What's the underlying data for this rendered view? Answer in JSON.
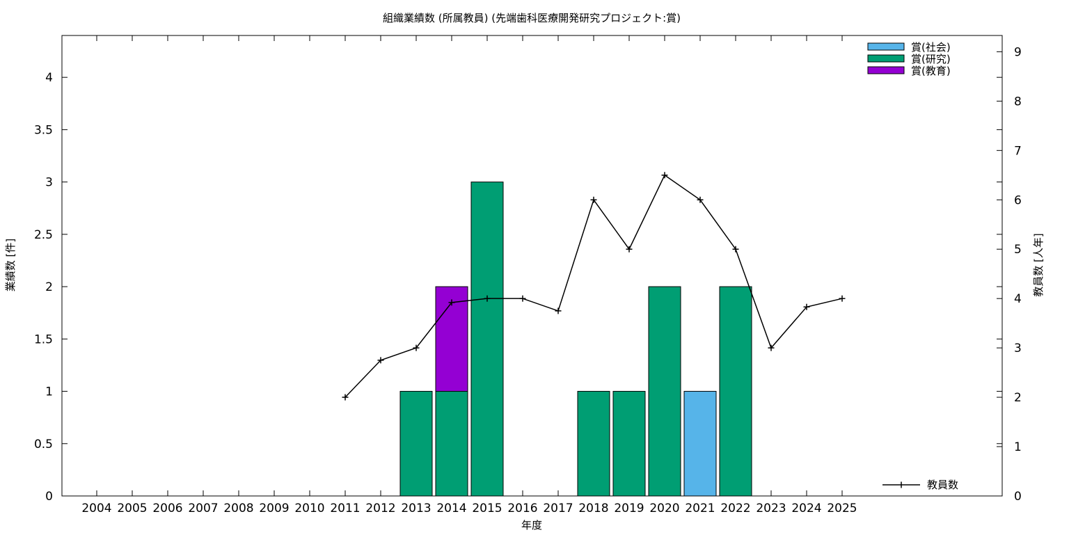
{
  "chart_data": {
    "type": "bar",
    "title": "組織業績数 (所属教員) (先端歯科医療開発研究プロジェクト:賞)",
    "xlabel": "年度",
    "ylabel": "業績数 [件]",
    "y2label": "教員数 [人年]",
    "categories": [
      "2004",
      "2005",
      "2006",
      "2007",
      "2008",
      "2009",
      "2010",
      "2011",
      "2012",
      "2013",
      "2014",
      "2015",
      "2016",
      "2017",
      "2018",
      "2019",
      "2020",
      "2021",
      "2022",
      "2023",
      "2024",
      "2025"
    ],
    "ylim": [
      0,
      4.4
    ],
    "y2lim": [
      0,
      9.33
    ],
    "yticks": [
      "0",
      "0.5",
      "1",
      "1.5",
      "2",
      "2.5",
      "3",
      "3.5",
      "4"
    ],
    "y2ticks": [
      "0",
      "1",
      "2",
      "3",
      "4",
      "5",
      "6",
      "7",
      "8",
      "9"
    ],
    "stacked": true,
    "grid": false,
    "legend_position": "top-right",
    "series": [
      {
        "name": "賞(社会)",
        "color": "#56b4e9",
        "values": [
          0,
          0,
          0,
          0,
          0,
          0,
          0,
          0,
          0,
          0,
          0,
          0,
          0,
          0,
          0,
          0,
          0,
          1,
          0,
          0,
          0,
          0
        ]
      },
      {
        "name": "賞(研究)",
        "color": "#009e73",
        "values": [
          0,
          0,
          0,
          0,
          0,
          0,
          0,
          0,
          0,
          1,
          1,
          3,
          0,
          0,
          1,
          1,
          2,
          0,
          2,
          0,
          0,
          0
        ]
      },
      {
        "name": "賞(教育)",
        "color": "#9400d3",
        "values": [
          0,
          0,
          0,
          0,
          0,
          0,
          0,
          0,
          0,
          0,
          1,
          0,
          0,
          0,
          0,
          0,
          0,
          0,
          0,
          0,
          0,
          0
        ]
      }
    ],
    "line_series": {
      "name": "教員数",
      "color": "#000000",
      "axis": "y2",
      "values": [
        null,
        null,
        null,
        null,
        null,
        null,
        null,
        2,
        2.75,
        3,
        3.92,
        4,
        4,
        3.75,
        6,
        5,
        6.5,
        6,
        5,
        3,
        3.83,
        4
      ]
    }
  }
}
